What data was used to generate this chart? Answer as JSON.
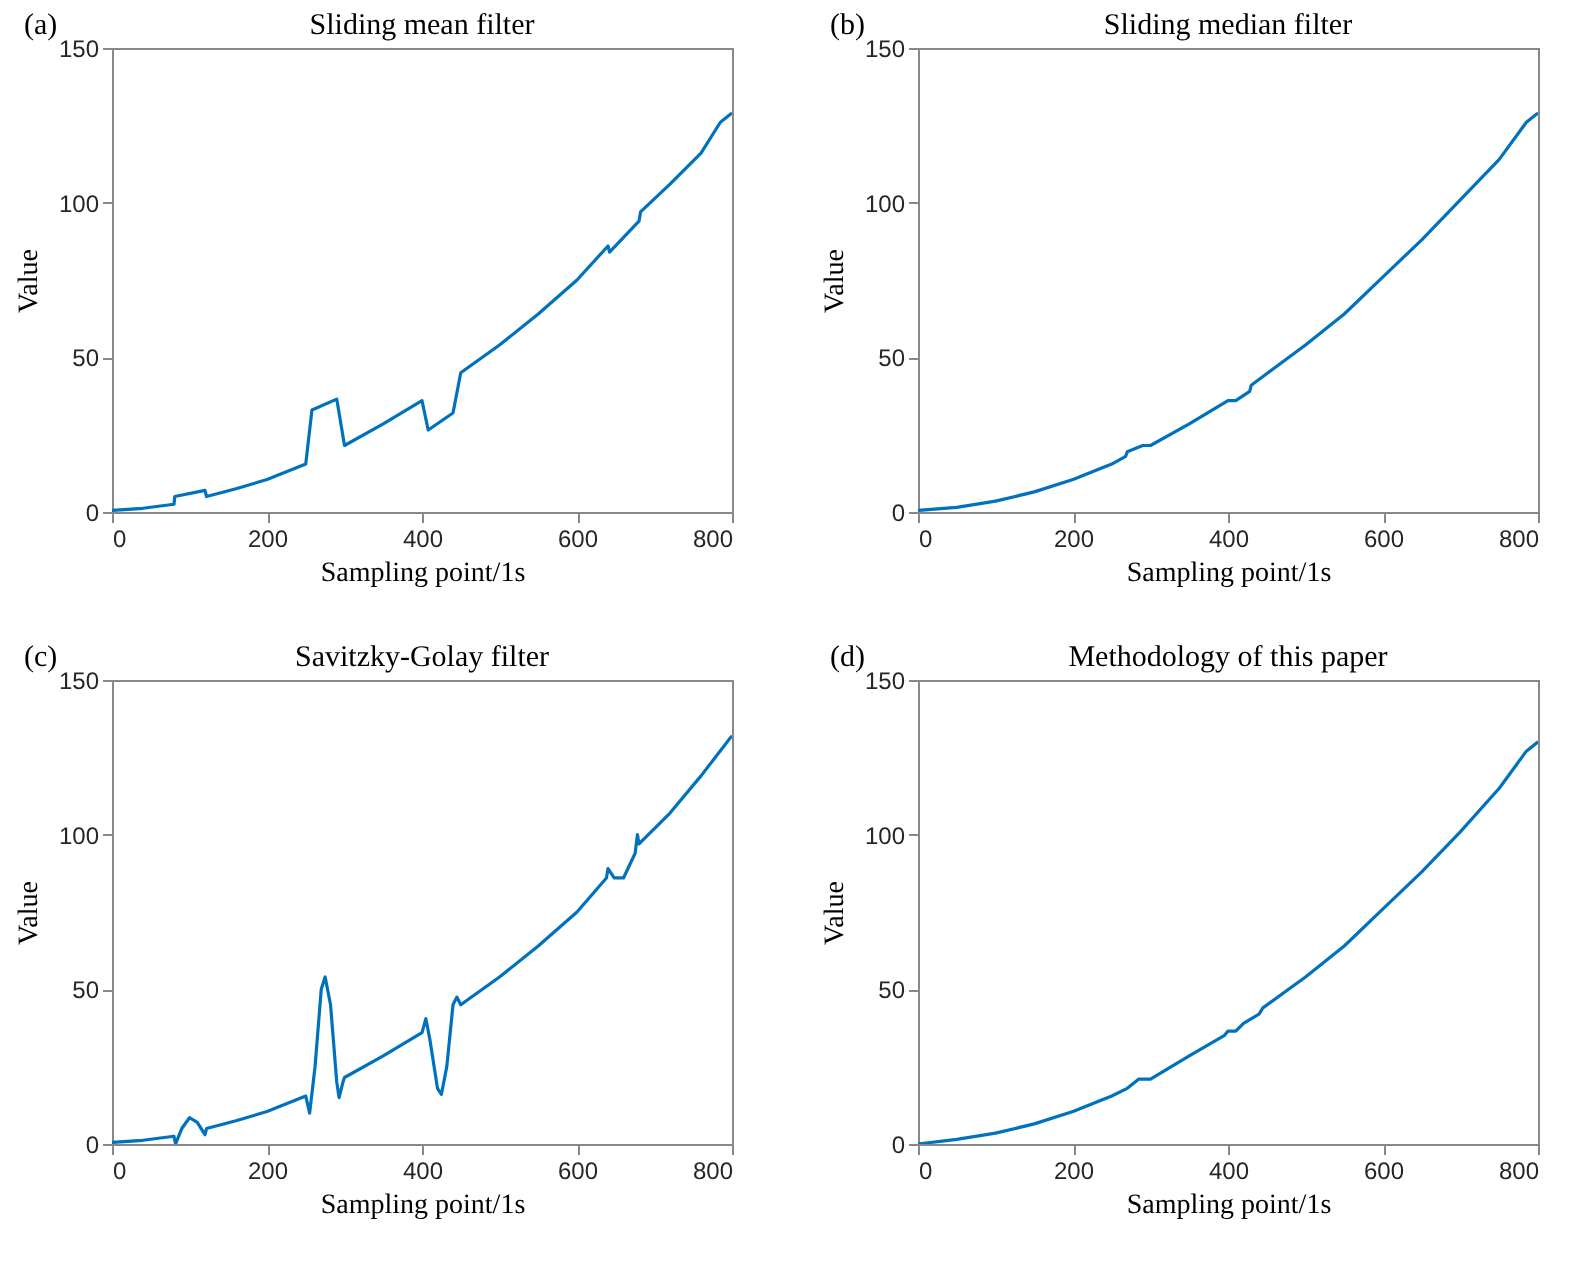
{
  "chart_data": [
    {
      "type": "line",
      "title": "Sliding mean filter",
      "xlabel": "Sampling point/1s",
      "ylabel": "Value",
      "annotations": [
        "(a)"
      ],
      "grid": false,
      "xlim": [
        0,
        800
      ],
      "xticks": [
        0,
        200,
        400,
        600,
        800
      ],
      "ylim": [
        0,
        150
      ],
      "yticks": [
        0,
        50,
        100,
        150
      ],
      "x": [
        0,
        40,
        80,
        81,
        120,
        122,
        160,
        200,
        250,
        258,
        290,
        300,
        350,
        400,
        408,
        440,
        450,
        500,
        550,
        600,
        640,
        642,
        680,
        682,
        720,
        760,
        785,
        800
      ],
      "series": [
        {
          "color": "#0072bd",
          "values": [
            0.5,
            1.2,
            2.5,
            5,
            7,
            5,
            7.5,
            10.5,
            15.5,
            33,
            36.5,
            21.5,
            28.5,
            36,
            26.5,
            32,
            45,
            54,
            64,
            75,
            86,
            84,
            94,
            97,
            106,
            116,
            126,
            129
          ]
        }
      ]
    },
    {
      "type": "line",
      "title": "Sliding median filter",
      "xlabel": "Sampling point/1s",
      "ylabel": "Value",
      "annotations": [
        "(b)"
      ],
      "grid": false,
      "xlim": [
        0,
        800
      ],
      "xticks": [
        0,
        200,
        400,
        600,
        800
      ],
      "ylim": [
        0,
        150
      ],
      "yticks": [
        0,
        50,
        100,
        150
      ],
      "x": [
        0,
        50,
        100,
        150,
        200,
        250,
        268,
        270,
        290,
        300,
        350,
        400,
        410,
        428,
        430,
        500,
        550,
        600,
        650,
        700,
        750,
        785,
        800
      ],
      "series": [
        {
          "color": "#0072bd",
          "values": [
            0.5,
            1.5,
            3.5,
            6.5,
            10.5,
            15.5,
            18,
            19.5,
            21.5,
            21.5,
            28.5,
            36,
            36,
            39,
            41,
            54,
            64,
            76,
            88,
            101,
            114,
            126,
            129
          ]
        }
      ]
    },
    {
      "type": "line",
      "title": "Savitzky-Golay filter",
      "xlabel": "Sampling point/1s",
      "ylabel": "Value",
      "annotations": [
        "(c)"
      ],
      "grid": false,
      "xlim": [
        0,
        800
      ],
      "xticks": [
        0,
        200,
        400,
        600,
        800
      ],
      "ylim": [
        0,
        150
      ],
      "yticks": [
        0,
        50,
        100,
        150
      ],
      "x": [
        0,
        40,
        80,
        82,
        90,
        100,
        110,
        120,
        122,
        160,
        200,
        250,
        255,
        262,
        270,
        275,
        282,
        290,
        293,
        298,
        300,
        350,
        400,
        405,
        410,
        420,
        425,
        432,
        440,
        445,
        450,
        500,
        550,
        600,
        638,
        640,
        648,
        660,
        675,
        678,
        680,
        720,
        760,
        800
      ],
      "series": [
        {
          "color": "#0072bd",
          "values": [
            0.5,
            1.2,
            2.5,
            0,
            5,
            8.5,
            7,
            3,
            5,
            7.5,
            10.5,
            15.5,
            10,
            25,
            50,
            54,
            45,
            20,
            15,
            20,
            21.5,
            28.5,
            36,
            40.5,
            34,
            18,
            16,
            25,
            45,
            47.5,
            45,
            54,
            64,
            75,
            86,
            89,
            86,
            86,
            94,
            100,
            97,
            107,
            119,
            132
          ]
        }
      ]
    },
    {
      "type": "line",
      "title": "Methodology of this paper",
      "xlabel": "Sampling point/1s",
      "ylabel": "Value",
      "annotations": [
        "(d)"
      ],
      "grid": false,
      "xlim": [
        0,
        800
      ],
      "xticks": [
        0,
        200,
        400,
        600,
        800
      ],
      "ylim": [
        0,
        150
      ],
      "yticks": [
        0,
        50,
        100,
        150
      ],
      "x": [
        0,
        50,
        100,
        150,
        200,
        250,
        270,
        285,
        300,
        350,
        395,
        400,
        410,
        420,
        440,
        445,
        500,
        550,
        600,
        650,
        700,
        750,
        785,
        800
      ],
      "series": [
        {
          "color": "#0072bd",
          "values": [
            0,
            1.5,
            3.5,
            6.5,
            10.5,
            15.5,
            18,
            21,
            21,
            28.5,
            35,
            36.5,
            36.5,
            39,
            42,
            44,
            54,
            64,
            76,
            88,
            101,
            115,
            127,
            130
          ]
        }
      ]
    }
  ]
}
